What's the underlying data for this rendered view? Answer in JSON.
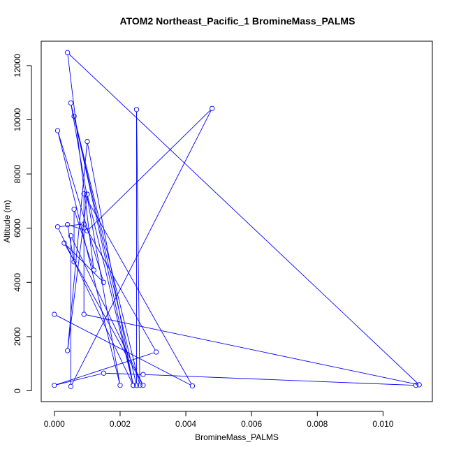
{
  "chart_data": {
    "type": "line",
    "title": "ATOM2 Northeast_Pacific_1 BromineMass_PALMS",
    "xlabel": "BromineMass_PALMS",
    "ylabel": "Altitude (m)",
    "xlim": [
      -0.0004,
      0.0115
    ],
    "ylim": [
      -400,
      12900
    ],
    "xticks": [
      0.0,
      0.002,
      0.004,
      0.006,
      0.008,
      0.01
    ],
    "xtick_labels": [
      "0.000",
      "0.002",
      "0.004",
      "0.006",
      "0.008",
      "0.010"
    ],
    "yticks": [
      0,
      2000,
      4000,
      6000,
      8000,
      10000,
      12000
    ],
    "ytick_labels": [
      "0",
      "2000",
      "4000",
      "6000",
      "8000",
      "10000",
      "12000"
    ],
    "grid": false,
    "legend": "none",
    "color": "#0000ff",
    "marker": "open-circle",
    "series": [
      {
        "points": [
          [
            0.011,
            200
          ],
          [
            0.0027,
            600
          ],
          [
            0.0015,
            650
          ],
          [
            0.0,
            200
          ],
          [
            0.0031,
            1430
          ],
          [
            0.0009,
            6150
          ],
          [
            0.0001,
            6050
          ],
          [
            0.0024,
            200
          ],
          [
            0.001,
            7250
          ],
          [
            0.0004,
            1480
          ],
          [
            0.001,
            9200
          ],
          [
            0.0024,
            200
          ],
          [
            0.0006,
            10130
          ],
          [
            0.0026,
            200
          ],
          [
            0.0025,
            10380
          ],
          [
            0.0025,
            200
          ],
          [
            0.0005,
            10620
          ],
          [
            0.002,
            200
          ],
          [
            0.0001,
            9600
          ],
          [
            0.0015,
            4000
          ],
          [
            0.0003,
            5450
          ],
          [
            0.0027,
            200
          ],
          [
            0.0005,
            5720
          ],
          [
            0.0005,
            160
          ],
          [
            0.0048,
            10420
          ],
          [
            0.001,
            5900
          ],
          [
            0.0004,
            6130
          ],
          [
            0.0006,
            4760
          ],
          [
            0.0006,
            6700
          ],
          [
            0.0012,
            4450
          ],
          [
            0.0004,
            12480
          ],
          [
            0.0111,
            220
          ],
          [
            0.0009,
            2820
          ],
          [
            0.0009,
            7270
          ],
          [
            0.0042,
            180
          ],
          [
            0.0,
            2820
          ]
        ]
      }
    ]
  }
}
